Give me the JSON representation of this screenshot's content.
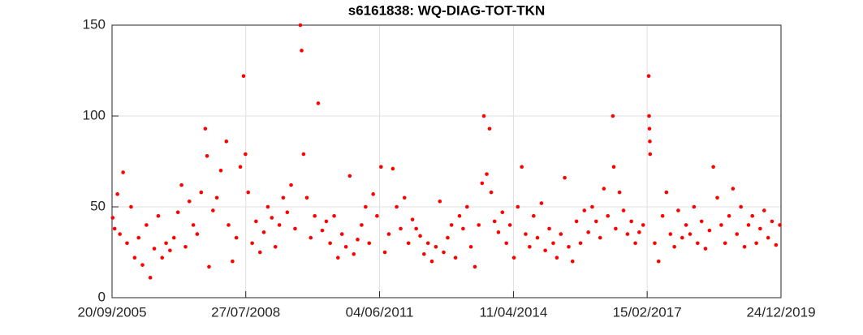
{
  "chart_data": {
    "type": "scatter",
    "title": "s6161838: WQ-DIAG-TOT-TKN",
    "color": "#ff0000",
    "grid": true,
    "xlim": [
      "20/09/2005",
      "24/12/2019"
    ],
    "xticks": [
      "20/09/2005",
      "27/07/2008",
      "04/06/2011",
      "11/04/2014",
      "15/02/2017",
      "24/12/2019"
    ],
    "ylim": [
      0,
      150
    ],
    "yticks": [
      0,
      50,
      100,
      150
    ],
    "x": [
      "25/09/2005",
      "10/10/2005",
      "01/11/2005",
      "20/11/2005",
      "15/12/2005",
      "15/01/2006",
      "15/02/2006",
      "15/03/2006",
      "15/04/2006",
      "15/05/2006",
      "15/06/2006",
      "15/07/2006",
      "15/08/2006",
      "15/09/2006",
      "15/10/2006",
      "15/11/2006",
      "15/12/2006",
      "15/01/2007",
      "15/02/2007",
      "15/03/2007",
      "15/04/2007",
      "15/05/2007",
      "15/06/2007",
      "15/07/2007",
      "15/08/2007",
      "16/09/2007",
      "30/09/2007",
      "15/10/2007",
      "15/11/2007",
      "15/12/2007",
      "15/01/2008",
      "27/02/2008",
      "15/03/2008",
      "15/04/2008",
      "15/05/2008",
      "15/06/2008",
      "10/07/2008",
      "25/07/2008",
      "15/08/2008",
      "15/09/2008",
      "15/10/2008",
      "15/11/2008",
      "15/12/2008",
      "15/01/2009",
      "15/02/2009",
      "15/03/2009",
      "15/04/2009",
      "15/05/2009",
      "15/06/2009",
      "15/07/2009",
      "15/08/2009",
      "25/09/2009",
      "05/10/2009",
      "20/10/2009",
      "15/11/2009",
      "15/12/2009",
      "15/01/2010",
      "11/02/2010",
      "15/03/2010",
      "15/04/2010",
      "15/05/2010",
      "15/06/2010",
      "15/07/2010",
      "15/08/2010",
      "15/09/2010",
      "15/10/2010",
      "15/11/2010",
      "15/12/2010",
      "15/01/2011",
      "15/02/2011",
      "15/03/2011",
      "15/04/2011",
      "15/05/2011",
      "15/06/2011",
      "15/07/2011",
      "15/08/2011",
      "15/09/2011",
      "15/10/2011",
      "15/11/2011",
      "15/12/2011",
      "15/01/2012",
      "15/02/2012",
      "15/03/2012",
      "15/04/2012",
      "15/05/2012",
      "15/06/2012",
      "15/07/2012",
      "15/08/2012",
      "15/09/2012",
      "15/10/2012",
      "15/11/2012",
      "15/12/2012",
      "15/01/2013",
      "15/02/2013",
      "15/03/2013",
      "15/04/2013",
      "15/05/2013",
      "15/06/2013",
      "15/07/2013",
      "10/08/2013",
      "24/08/2013",
      "15/09/2013",
      "07/10/2013",
      "20/10/2013",
      "15/11/2013",
      "15/12/2013",
      "15/01/2014",
      "15/02/2014",
      "15/03/2014",
      "15/04/2014",
      "15/05/2014",
      "15/06/2014",
      "15/07/2014",
      "15/08/2014",
      "15/09/2014",
      "15/10/2014",
      "15/11/2014",
      "15/12/2014",
      "15/01/2015",
      "15/02/2015",
      "15/03/2015",
      "15/04/2015",
      "15/05/2015",
      "15/06/2015",
      "15/07/2015",
      "15/08/2015",
      "15/09/2015",
      "15/10/2015",
      "15/11/2015",
      "15/12/2015",
      "15/01/2016",
      "15/02/2016",
      "15/03/2016",
      "15/04/2016",
      "24/05/2016",
      "31/05/2016",
      "15/06/2016",
      "15/07/2016",
      "15/08/2016",
      "15/09/2016",
      "15/10/2016",
      "15/11/2016",
      "15/12/2016",
      "15/01/2017",
      "27/02/2017",
      "02/03/2017",
      "05/03/2017",
      "08/03/2017",
      "10/03/2017",
      "15/04/2017",
      "15/05/2017",
      "15/06/2017",
      "15/07/2017",
      "15/08/2017",
      "15/09/2017",
      "15/10/2017",
      "15/11/2017",
      "15/12/2017",
      "15/01/2018",
      "15/02/2018",
      "15/03/2018",
      "15/04/2018",
      "15/05/2018",
      "15/06/2018",
      "15/07/2018",
      "15/08/2018",
      "15/09/2018",
      "15/10/2018",
      "15/11/2018",
      "15/12/2018",
      "15/01/2019",
      "15/02/2019",
      "15/03/2019",
      "15/04/2019",
      "15/05/2019",
      "15/06/2019",
      "15/07/2019",
      "15/08/2019",
      "15/09/2019",
      "15/10/2019",
      "15/11/2019",
      "15/12/2019"
    ],
    "values": [
      44,
      38,
      57,
      35,
      69,
      30,
      50,
      22,
      33,
      18,
      40,
      11,
      27,
      45,
      22,
      30,
      26,
      33,
      47,
      62,
      28,
      53,
      40,
      35,
      58,
      93,
      78,
      17,
      48,
      55,
      70,
      86,
      40,
      20,
      33,
      72,
      122,
      79,
      58,
      30,
      42,
      25,
      36,
      50,
      44,
      28,
      40,
      55,
      47,
      62,
      38,
      150,
      136,
      79,
      55,
      33,
      45,
      107,
      37,
      42,
      30,
      45,
      22,
      35,
      28,
      67,
      24,
      32,
      40,
      50,
      30,
      57,
      45,
      72,
      25,
      35,
      71,
      50,
      38,
      55,
      30,
      43,
      38,
      34,
      24,
      30,
      20,
      28,
      53,
      25,
      33,
      40,
      22,
      45,
      38,
      50,
      28,
      17,
      40,
      63,
      100,
      68,
      93,
      58,
      42,
      36,
      47,
      30,
      40,
      22,
      50,
      72,
      35,
      28,
      45,
      33,
      52,
      26,
      38,
      30,
      22,
      35,
      66,
      28,
      20,
      42,
      30,
      48,
      36,
      50,
      42,
      33,
      60,
      45,
      100,
      72,
      38,
      58,
      48,
      35,
      42,
      30,
      36,
      40,
      122,
      100,
      93,
      86,
      79,
      30,
      20,
      45,
      58,
      35,
      28,
      48,
      33,
      40,
      35,
      50,
      30,
      42,
      27,
      37,
      72,
      55,
      40,
      30,
      45,
      60,
      35,
      50,
      28,
      40,
      45,
      30,
      38,
      48,
      33,
      42,
      29,
      40
    ]
  }
}
